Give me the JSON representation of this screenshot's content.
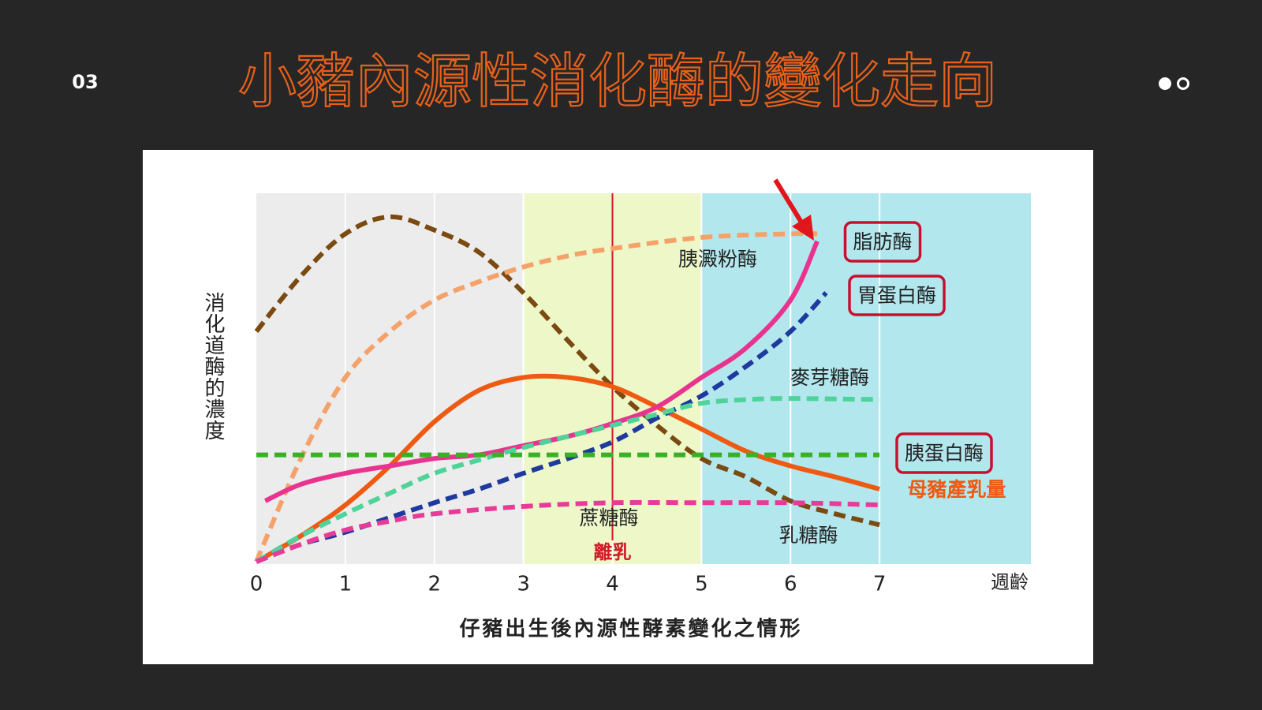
{
  "slide": {
    "number": "03",
    "title": "小豬內源性消化酶的變化走向"
  },
  "chart_data": {
    "type": "line",
    "ylabel": "消化道酶的濃度",
    "xlabel": "仔豬出生後內源性酵素變化之情形",
    "xunit": "週齡",
    "xlim": [
      0,
      8.7
    ],
    "xticks": [
      0,
      1,
      2,
      3,
      4,
      5,
      6,
      7
    ],
    "ylim": [
      0,
      100
    ],
    "grid": true,
    "regions": [
      {
        "from": 0,
        "to": 3,
        "color": "#ececec"
      },
      {
        "from": 3,
        "to": 5,
        "color": "#eef7c8"
      },
      {
        "from": 5,
        "to": 8.7,
        "color": "#b3e7ee"
      }
    ],
    "annotations": [
      {
        "text": "離乳",
        "x": 4,
        "color": "#d11a2a"
      }
    ],
    "series": [
      {
        "name": "乳糖酶",
        "color": "#7a4a10",
        "dashed": true,
        "highlight": false,
        "x": [
          0,
          0.5,
          1,
          1.5,
          2,
          2.5,
          3,
          3.5,
          4,
          4.5,
          5,
          5.5,
          6,
          6.5,
          7
        ],
        "values": [
          62.5,
          77.5,
          89,
          93.6,
          90,
          84,
          73,
          60,
          47.5,
          37,
          28,
          23,
          16.5,
          13,
          10
        ]
      },
      {
        "name": "胰澱粉酶",
        "color": "#f5a26a",
        "dashed": true,
        "highlight": false,
        "x": [
          0,
          0.5,
          1,
          1.5,
          2,
          2.5,
          3,
          3.5,
          4,
          5,
          6,
          6.3
        ],
        "values": [
          0,
          28,
          50,
          62.5,
          71,
          76,
          80,
          83,
          85,
          88,
          89,
          89
        ]
      },
      {
        "name": "母豬產乳量",
        "color": "#ee5a12",
        "dashed": false,
        "highlight": false,
        "x": [
          0,
          0.5,
          1,
          1.5,
          2,
          2.5,
          3,
          3.5,
          4,
          4.5,
          5,
          5.5,
          6,
          6.5,
          7
        ],
        "values": [
          0,
          7,
          15.4,
          26,
          38,
          46.5,
          50,
          50,
          47.5,
          42,
          36,
          30,
          26,
          23,
          19.7
        ]
      },
      {
        "name": "脂肪酶",
        "color": "#e8348f",
        "dashed": false,
        "highlight": true,
        "x": [
          0.1,
          0.5,
          1,
          1.5,
          2,
          2.5,
          3,
          3.5,
          4,
          4.5,
          5,
          5.5,
          6,
          6.3
        ],
        "values": [
          16.5,
          21,
          24,
          26,
          28,
          29,
          31.5,
          34,
          37.5,
          42,
          50,
          58,
          71,
          87
        ]
      },
      {
        "name": "胃蛋白酶",
        "color": "#1e3a9e",
        "dashed": true,
        "highlight": true,
        "x": [
          0,
          0.5,
          1,
          1.5,
          2,
          2.5,
          3,
          3.5,
          4,
          4.5,
          5,
          5.5,
          6,
          6.4
        ],
        "values": [
          0,
          4.7,
          8,
          12,
          16,
          19.7,
          24,
          28,
          32.5,
          39,
          45,
          53,
          62.5,
          73
        ]
      },
      {
        "name": "麥芽糖酶",
        "color": "#4fd39a",
        "dashed": true,
        "highlight": false,
        "x": [
          0,
          0.5,
          1,
          1.5,
          2,
          2.5,
          3,
          3.5,
          4,
          4.5,
          5,
          5.5,
          6,
          7
        ],
        "values": [
          0,
          7,
          13,
          18.6,
          24,
          27.6,
          31,
          34,
          37,
          40,
          43,
          44,
          44.3,
          44
        ]
      },
      {
        "name": "胰蛋白酶",
        "color": "#3bb027",
        "dashed": true,
        "highlight": true,
        "x": [
          0,
          7
        ],
        "values": [
          29,
          29
        ]
      },
      {
        "name": "蔗糖酶",
        "color": "#e63c98",
        "dashed": true,
        "highlight": false,
        "x": [
          0,
          0.5,
          1,
          1.5,
          2,
          3,
          4,
          5,
          6,
          7
        ],
        "values": [
          0,
          4.7,
          8.6,
          11,
          13,
          15,
          16,
          16,
          16,
          15.4
        ]
      }
    ]
  }
}
